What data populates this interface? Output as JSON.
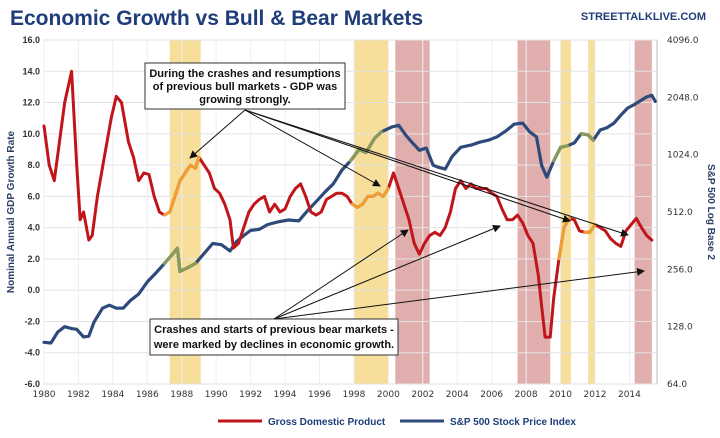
{
  "title": "Economic Growth vs Bull & Bear Markets",
  "source": "STREETTALKLIVE.COM",
  "colors": {
    "gdp": "#c0151b",
    "sp500": "#2e4a7a",
    "bull_band": "#f6d98a",
    "bear_band": "#d99a9a",
    "gdp_bull": "#f0a030",
    "sp500_bull": "#8a9a5a"
  },
  "chart_data": {
    "type": "line",
    "title": "Economic Growth vs Bull & Bear Markets",
    "xlabel": "",
    "ylabel": "Nominal Annual GDP Growth Rate",
    "y2label": "S&P 500 Log Base 2",
    "xlim": [
      1980,
      2015.6
    ],
    "ylim": [
      -6,
      16
    ],
    "y2lim": [
      64,
      4096
    ],
    "y2scale": "log2",
    "x_ticks": [
      1980,
      1982,
      1984,
      1986,
      1988,
      1990,
      1992,
      1994,
      1996,
      1998,
      2000,
      2002,
      2004,
      2006,
      2008,
      2010,
      2012,
      2014
    ],
    "y_ticks": [
      "-6.0",
      "-4.0",
      "-2.0",
      "0.0",
      "2.0",
      "4.0",
      "6.0",
      "8.0",
      "10.0",
      "12.0",
      "14.0",
      "16.0"
    ],
    "y2_ticks": [
      "64.0",
      "128.0",
      "256.0",
      "512.0",
      "1024.0",
      "2048.0",
      "4096.0"
    ],
    "grid": true,
    "legend": "bottom-center",
    "bull_periods": [
      [
        1987.3,
        1989.1
      ],
      [
        1998.0,
        2000.0
      ],
      [
        2010.0,
        2010.6
      ],
      [
        2011.6,
        2012.0
      ]
    ],
    "bear_periods": [
      [
        2000.4,
        2002.4
      ],
      [
        2007.5,
        2009.4
      ],
      [
        2014.3,
        2015.3
      ]
    ],
    "series": [
      {
        "name": "Gross Domestic Product",
        "axis": "left",
        "points": [
          [
            1980.0,
            10.5
          ],
          [
            1980.3,
            8.0
          ],
          [
            1980.6,
            7.0
          ],
          [
            1980.9,
            9.5
          ],
          [
            1981.2,
            12.0
          ],
          [
            1981.6,
            14.0
          ],
          [
            1981.9,
            8.0
          ],
          [
            1982.1,
            4.5
          ],
          [
            1982.3,
            5.0
          ],
          [
            1982.6,
            3.2
          ],
          [
            1982.8,
            3.5
          ],
          [
            1983.1,
            6.0
          ],
          [
            1983.5,
            8.5
          ],
          [
            1983.9,
            11.0
          ],
          [
            1984.2,
            12.4
          ],
          [
            1984.5,
            12.0
          ],
          [
            1984.9,
            9.5
          ],
          [
            1985.2,
            8.5
          ],
          [
            1985.5,
            7.0
          ],
          [
            1985.8,
            7.5
          ],
          [
            1986.1,
            7.4
          ],
          [
            1986.4,
            6.0
          ],
          [
            1986.7,
            5.0
          ],
          [
            1987.0,
            4.8
          ],
          [
            1987.3,
            5.0
          ],
          [
            1987.6,
            6.0
          ],
          [
            1987.9,
            7.0
          ],
          [
            1988.2,
            7.5
          ],
          [
            1988.5,
            8.0
          ],
          [
            1988.8,
            7.8
          ],
          [
            1989.0,
            8.5
          ],
          [
            1989.3,
            8.0
          ],
          [
            1989.6,
            7.5
          ],
          [
            1989.9,
            6.5
          ],
          [
            1990.2,
            6.2
          ],
          [
            1990.5,
            5.5
          ],
          [
            1990.8,
            4.5
          ],
          [
            1991.0,
            2.7
          ],
          [
            1991.3,
            3.0
          ],
          [
            1991.6,
            4.0
          ],
          [
            1991.9,
            5.0
          ],
          [
            1992.2,
            5.5
          ],
          [
            1992.5,
            5.8
          ],
          [
            1992.8,
            6.0
          ],
          [
            1993.1,
            5.0
          ],
          [
            1993.4,
            5.5
          ],
          [
            1993.7,
            5.0
          ],
          [
            1994.0,
            5.2
          ],
          [
            1994.3,
            6.0
          ],
          [
            1994.6,
            6.5
          ],
          [
            1994.9,
            6.8
          ],
          [
            1995.2,
            6.0
          ],
          [
            1995.5,
            5.0
          ],
          [
            1995.8,
            4.8
          ],
          [
            1996.1,
            5.0
          ],
          [
            1996.4,
            5.8
          ],
          [
            1996.7,
            6.0
          ],
          [
            1997.0,
            6.2
          ],
          [
            1997.3,
            6.2
          ],
          [
            1997.6,
            6.0
          ],
          [
            1997.9,
            5.5
          ],
          [
            1998.2,
            5.3
          ],
          [
            1998.5,
            5.5
          ],
          [
            1998.8,
            6.0
          ],
          [
            1999.1,
            6.0
          ],
          [
            1999.4,
            6.2
          ],
          [
            1999.7,
            6.0
          ],
          [
            2000.0,
            6.5
          ],
          [
            2000.3,
            7.5
          ],
          [
            2000.6,
            6.5
          ],
          [
            2000.9,
            5.5
          ],
          [
            2001.2,
            4.5
          ],
          [
            2001.5,
            3.0
          ],
          [
            2001.8,
            2.3
          ],
          [
            2002.1,
            3.0
          ],
          [
            2002.4,
            3.5
          ],
          [
            2002.7,
            3.7
          ],
          [
            2003.0,
            3.5
          ],
          [
            2003.3,
            4.0
          ],
          [
            2003.6,
            5.0
          ],
          [
            2003.9,
            6.5
          ],
          [
            2004.2,
            7.0
          ],
          [
            2004.5,
            6.5
          ],
          [
            2004.8,
            6.8
          ],
          [
            2005.1,
            6.5
          ],
          [
            2005.4,
            6.5
          ],
          [
            2005.7,
            6.5
          ],
          [
            2006.0,
            6.2
          ],
          [
            2006.3,
            6.0
          ],
          [
            2006.6,
            5.2
          ],
          [
            2006.9,
            4.5
          ],
          [
            2007.2,
            4.5
          ],
          [
            2007.5,
            4.8
          ],
          [
            2007.8,
            4.3
          ],
          [
            2008.1,
            3.5
          ],
          [
            2008.4,
            3.0
          ],
          [
            2008.7,
            1.0
          ],
          [
            2008.9,
            -1.0
          ],
          [
            2009.1,
            -3.0
          ],
          [
            2009.4,
            -3.0
          ],
          [
            2009.6,
            -0.5
          ],
          [
            2009.9,
            2.0
          ],
          [
            2010.2,
            4.0
          ],
          [
            2010.5,
            4.6
          ],
          [
            2010.8,
            4.5
          ],
          [
            2011.1,
            3.8
          ],
          [
            2011.4,
            3.7
          ],
          [
            2011.7,
            3.7
          ],
          [
            2012.0,
            4.2
          ],
          [
            2012.3,
            4.0
          ],
          [
            2012.6,
            3.8
          ],
          [
            2012.9,
            3.3
          ],
          [
            2013.2,
            3.0
          ],
          [
            2013.5,
            2.8
          ],
          [
            2013.8,
            3.8
          ],
          [
            2014.1,
            4.2
          ],
          [
            2014.4,
            4.6
          ],
          [
            2014.7,
            4.0
          ],
          [
            2015.0,
            3.5
          ],
          [
            2015.3,
            3.2
          ]
        ]
      },
      {
        "name": "S&P 500 Stock Price Index",
        "axis": "right",
        "points": [
          [
            1980.0,
            106
          ],
          [
            1980.4,
            105
          ],
          [
            1980.8,
            120
          ],
          [
            1981.2,
            128
          ],
          [
            1981.6,
            125
          ],
          [
            1981.9,
            124
          ],
          [
            1982.3,
            113
          ],
          [
            1982.6,
            114
          ],
          [
            1982.9,
            135
          ],
          [
            1983.4,
            160
          ],
          [
            1983.8,
            166
          ],
          [
            1984.2,
            160
          ],
          [
            1984.6,
            160
          ],
          [
            1985.0,
            175
          ],
          [
            1985.5,
            190
          ],
          [
            1986.0,
            220
          ],
          [
            1986.5,
            245
          ],
          [
            1987.0,
            275
          ],
          [
            1987.5,
            310
          ],
          [
            1987.75,
            330
          ],
          [
            1987.9,
            250
          ],
          [
            1988.3,
            260
          ],
          [
            1988.8,
            275
          ],
          [
            1989.3,
            310
          ],
          [
            1989.8,
            350
          ],
          [
            1990.3,
            345
          ],
          [
            1990.8,
            320
          ],
          [
            1991.2,
            360
          ],
          [
            1991.6,
            385
          ],
          [
            1992.0,
            410
          ],
          [
            1992.5,
            415
          ],
          [
            1993.0,
            440
          ],
          [
            1993.6,
            455
          ],
          [
            1994.2,
            465
          ],
          [
            1994.8,
            460
          ],
          [
            1995.3,
            520
          ],
          [
            1995.8,
            580
          ],
          [
            1996.3,
            650
          ],
          [
            1996.8,
            720
          ],
          [
            1997.3,
            850
          ],
          [
            1997.8,
            950
          ],
          [
            1998.3,
            1090
          ],
          [
            1998.7,
            1050
          ],
          [
            1999.2,
            1250
          ],
          [
            1999.6,
            1350
          ],
          [
            2000.2,
            1430
          ],
          [
            2000.6,
            1460
          ],
          [
            2001.0,
            1300
          ],
          [
            2001.4,
            1180
          ],
          [
            2001.8,
            1080
          ],
          [
            2002.2,
            1110
          ],
          [
            2002.6,
            900
          ],
          [
            2002.9,
            880
          ],
          [
            2003.3,
            860
          ],
          [
            2003.7,
            1000
          ],
          [
            2004.2,
            1120
          ],
          [
            2004.8,
            1150
          ],
          [
            2005.3,
            1190
          ],
          [
            2005.8,
            1220
          ],
          [
            2006.3,
            1270
          ],
          [
            2006.8,
            1360
          ],
          [
            2007.3,
            1480
          ],
          [
            2007.8,
            1500
          ],
          [
            2008.2,
            1350
          ],
          [
            2008.6,
            1270
          ],
          [
            2008.9,
            900
          ],
          [
            2009.2,
            780
          ],
          [
            2009.6,
            950
          ],
          [
            2010.0,
            1120
          ],
          [
            2010.4,
            1140
          ],
          [
            2010.8,
            1180
          ],
          [
            2011.2,
            1320
          ],
          [
            2011.6,
            1300
          ],
          [
            2011.9,
            1220
          ],
          [
            2012.3,
            1380
          ],
          [
            2012.7,
            1420
          ],
          [
            2013.1,
            1500
          ],
          [
            2013.5,
            1650
          ],
          [
            2013.9,
            1800
          ],
          [
            2014.3,
            1880
          ],
          [
            2014.7,
            1980
          ],
          [
            2015.0,
            2060
          ],
          [
            2015.3,
            2100
          ],
          [
            2015.5,
            1950
          ]
        ]
      }
    ],
    "annotations": [
      "During the crashes and resumptions of previous bull markets - GDP was growing strongly.",
      "Crashes and starts of previous bear markets - were marked by declines in economic growth."
    ]
  },
  "annotation_top": {
    "line1": "During the crashes and resumptions",
    "line2": "of previous bull markets - GDP was",
    "line3": "growing strongly."
  },
  "annotation_bottom": {
    "line1": "Crashes and starts of previous bear markets -",
    "line2": "were marked by declines in economic growth."
  },
  "legend": {
    "gdp": "Gross Domestic Product",
    "sp500": "S&P 500 Stock Price Index"
  }
}
